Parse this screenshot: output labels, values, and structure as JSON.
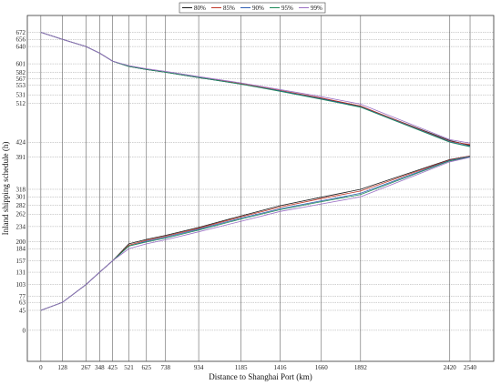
{
  "chart_data": {
    "type": "line",
    "xlabel": "Distance to Shanghai Port (km)",
    "ylabel": "Inland shipping schedule (h)",
    "x_ticks": [
      0,
      128,
      267,
      348,
      425,
      521,
      625,
      738,
      934,
      1185,
      1416,
      1660,
      1892,
      2420,
      2540
    ],
    "y_ticks": [
      0,
      45,
      63,
      77,
      103,
      131,
      157,
      184,
      200,
      234,
      262,
      282,
      301,
      318,
      391,
      424,
      512,
      531,
      553,
      567,
      582,
      601,
      640,
      656,
      672
    ],
    "xlim": [
      -80,
      2680
    ],
    "ylim": [
      -70,
      710
    ],
    "grid": true,
    "legend_position": "top-center",
    "colors": {
      "80%": "#1a1a1a",
      "85%": "#c0392b",
      "90%": "#2f5fb3",
      "95%": "#1e8a5a",
      "99%": "#9b6fc4"
    },
    "series": [
      {
        "name": "80%",
        "segments": [
          {
            "x": [
              0,
              128,
              267,
              348,
              425,
              521,
              625,
              738,
              934,
              1185,
              1416,
              1660,
              1892,
              2420,
              2540
            ],
            "y": [
              672,
              656,
              640,
              625,
              607,
              595,
              588,
              582,
              570,
              556,
              540,
              523,
              505,
              428,
              417
            ]
          },
          {
            "x": [
              0,
              128,
              267,
              348,
              425,
              521,
              625,
              738,
              934,
              1185,
              1416,
              1660,
              1892,
              2420,
              2540
            ],
            "y": [
              45,
              63,
              103,
              131,
              157,
              195,
              205,
              214,
              232,
              258,
              281,
              300,
              318,
              385,
              393
            ]
          }
        ]
      },
      {
        "name": "85%",
        "segments": [
          {
            "x": [
              0,
              128,
              267,
              348,
              425,
              521,
              625,
              738,
              934,
              1185,
              1416,
              1660,
              1892,
              2420,
              2540
            ],
            "y": [
              672,
              656,
              640,
              625,
              607,
              595,
              588,
              582,
              570,
              556,
              541,
              524,
              506,
              426,
              419
            ]
          },
          {
            "x": [
              0,
              128,
              267,
              348,
              425,
              521,
              625,
              738,
              934,
              1185,
              1416,
              1660,
              1892,
              2420,
              2540
            ],
            "y": [
              45,
              63,
              103,
              131,
              157,
              192,
              203,
              212,
              230,
              256,
              278,
              297,
              314,
              384,
              393
            ]
          }
        ]
      },
      {
        "name": "90%",
        "segments": [
          {
            "x": [
              0,
              128,
              267,
              348,
              425,
              521,
              625,
              738,
              934,
              1185,
              1416,
              1660,
              1892,
              2420,
              2540
            ],
            "y": [
              672,
              656,
              640,
              625,
              607,
              595,
              588,
              582,
              570,
              555,
              540,
              522,
              504,
              425,
              415
            ]
          },
          {
            "x": [
              0,
              128,
              267,
              348,
              425,
              521,
              625,
              738,
              934,
              1185,
              1416,
              1660,
              1892,
              2420,
              2540
            ],
            "y": [
              45,
              63,
              103,
              131,
              157,
              190,
              201,
              210,
              228,
              253,
              274,
              292,
              309,
              383,
              392
            ]
          }
        ]
      },
      {
        "name": "95%",
        "segments": [
          {
            "x": [
              0,
              128,
              267,
              348,
              425,
              521,
              625,
              738,
              934,
              1185,
              1416,
              1660,
              1892,
              2420,
              2540
            ],
            "y": [
              672,
              656,
              640,
              625,
              607,
              595,
              588,
              582,
              570,
              555,
              539,
              521,
              503,
              424,
              414
            ]
          },
          {
            "x": [
              0,
              128,
              267,
              348,
              425,
              521,
              625,
              738,
              934,
              1185,
              1416,
              1660,
              1892,
              2420,
              2540
            ],
            "y": [
              45,
              63,
              103,
              131,
              157,
              190,
              199,
              208,
              226,
              251,
              272,
              290,
              306,
              382,
              391
            ]
          }
        ]
      },
      {
        "name": "99%",
        "segments": [
          {
            "x": [
              0,
              128,
              267,
              348,
              425,
              521,
              625,
              738,
              934,
              1185,
              1416,
              1660,
              1892,
              2420,
              2540
            ],
            "y": [
              672,
              656,
              640,
              625,
              607,
              597,
              590,
              584,
              572,
              558,
              543,
              527,
              510,
              430,
              422
            ]
          },
          {
            "x": [
              0,
              128,
              267,
              348,
              425,
              521,
              625,
              738,
              934,
              1185,
              1416,
              1660,
              1892,
              2420,
              2540
            ],
            "y": [
              45,
              63,
              103,
              131,
              157,
              184,
              195,
              204,
              222,
              246,
              268,
              285,
              301,
              380,
              390
            ]
          }
        ]
      }
    ]
  }
}
